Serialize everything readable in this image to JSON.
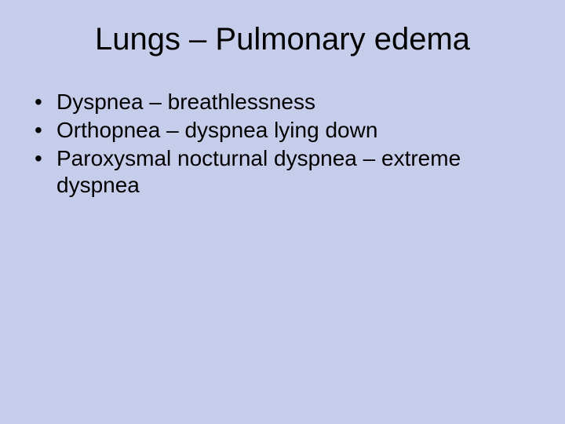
{
  "slide": {
    "background_color": "#c6cdea",
    "text_color": "#000000",
    "font_family": "Arial",
    "title": {
      "text": "Lungs – Pulmonary edema",
      "fontsize": 40,
      "weight": 400,
      "align": "center"
    },
    "bullets": {
      "fontsize": 28,
      "marker": "•",
      "items": [
        "Dyspnea – breathlessness",
        "Orthopnea – dyspnea lying down",
        "Paroxysmal nocturnal dyspnea – extreme dyspnea"
      ]
    }
  }
}
